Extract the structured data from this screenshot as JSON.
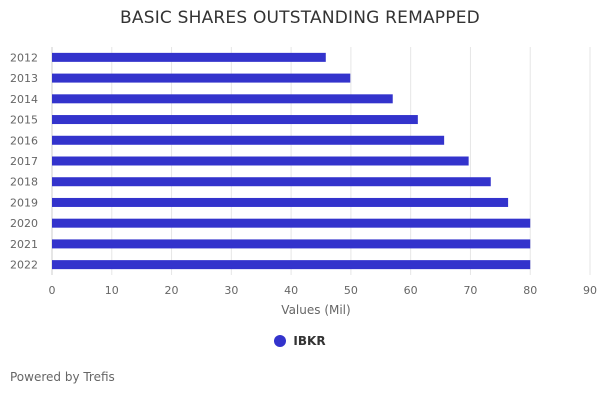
{
  "chart_data": {
    "type": "bar",
    "orientation": "horizontal",
    "title": "BASIC SHARES OUTSTANDING REMAPPED",
    "xlabel": "Values (Mil)",
    "ylabel": "",
    "categories": [
      "2012",
      "2013",
      "2014",
      "2015",
      "2016",
      "2017",
      "2018",
      "2019",
      "2020",
      "2021",
      "2022"
    ],
    "series": [
      {
        "name": "IBKR",
        "values": [
          45.8,
          49.9,
          57.0,
          61.2,
          65.6,
          69.7,
          73.4,
          76.3,
          80.0,
          80.0,
          80.0
        ]
      }
    ],
    "xlim": [
      0,
      90
    ],
    "xticks": [
      0,
      10,
      20,
      30,
      40,
      50,
      60,
      70,
      80,
      90
    ],
    "grid": true,
    "legend_position": "bottom-center"
  },
  "colors": {
    "bar": "#3333cc",
    "grid": "#e6e6e6",
    "axis_text": "#666666"
  },
  "legend": {
    "items": [
      {
        "label": "IBKR",
        "color": "#3333cc"
      }
    ]
  },
  "footer": {
    "credit": "Powered by Trefis"
  }
}
